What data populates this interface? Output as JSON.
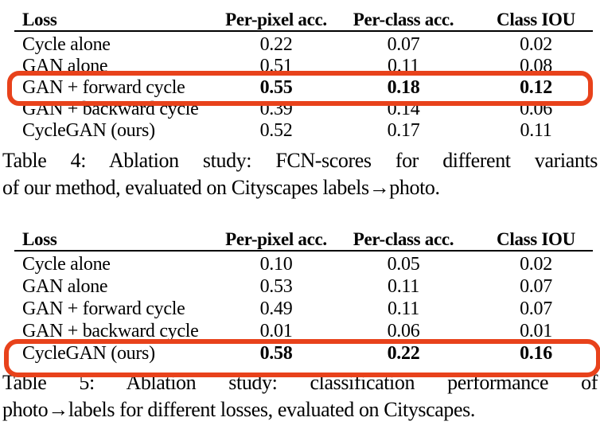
{
  "accent_color": "#e8421b",
  "text_color": "#000000",
  "background_color": "#ffffff",
  "table4": {
    "headers": [
      "Loss",
      "Per-pixel acc.",
      "Per-class acc.",
      "Class IOU"
    ],
    "rows": [
      [
        "Cycle alone",
        "0.22",
        "0.07",
        "0.02"
      ],
      [
        "GAN alone",
        "0.51",
        "0.11",
        "0.08"
      ],
      [
        "GAN + forward cycle",
        "0.55",
        "0.18",
        "0.12"
      ],
      [
        "GAN + backward cycle",
        "0.39",
        "0.14",
        "0.06"
      ],
      [
        "CycleGAN (ours)",
        "0.52",
        "0.17",
        "0.11"
      ]
    ],
    "highlighted_row": "GAN + forward cycle",
    "caption_line1": "Table 4: Ablation study: FCN-scores for different variants",
    "caption_line2": "of our method, evaluated on Cityscapes labels→photo."
  },
  "table5": {
    "headers": [
      "Loss",
      "Per-pixel acc.",
      "Per-class acc.",
      "Class IOU"
    ],
    "rows": [
      [
        "Cycle alone",
        "0.10",
        "0.05",
        "0.02"
      ],
      [
        "GAN alone",
        "0.53",
        "0.11",
        "0.07"
      ],
      [
        "GAN + forward cycle",
        "0.49",
        "0.11",
        "0.07"
      ],
      [
        "GAN + backward cycle",
        "0.01",
        "0.06",
        "0.01"
      ],
      [
        "CycleGAN (ours)",
        "0.58",
        "0.22",
        "0.16"
      ]
    ],
    "highlighted_row": "CycleGAN (ours)",
    "caption_line1": "Table 5: Ablation study: classification performance of",
    "caption_line2": "photo→labels for different losses, evaluated on Cityscapes."
  }
}
